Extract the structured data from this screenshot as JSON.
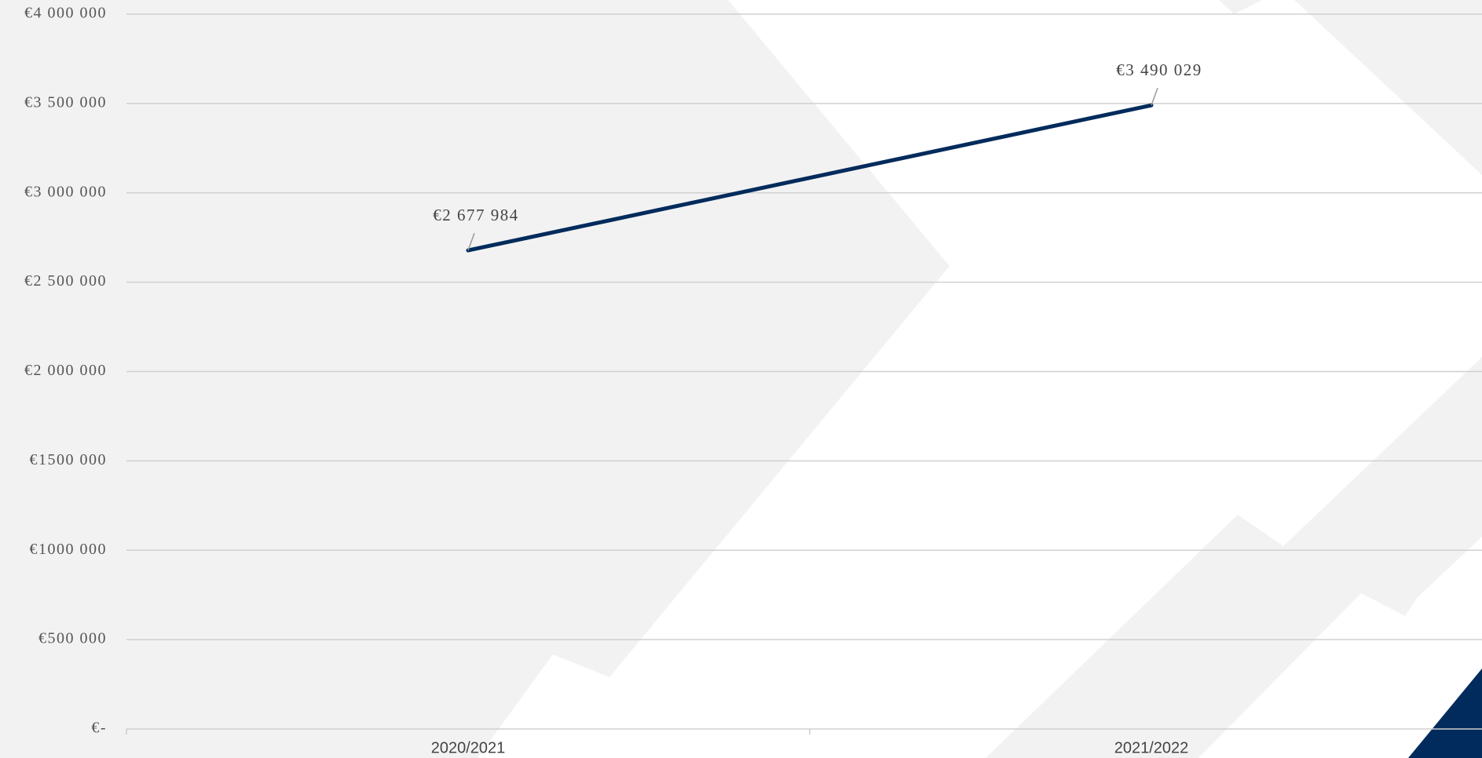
{
  "chart_data": {
    "type": "line",
    "categories": [
      "2020/2021",
      "2021/2022"
    ],
    "series": [
      {
        "color": "#002b5c",
        "values": [
          2677984,
          3490029
        ],
        "value_labels": [
          "€2 677 984",
          "€3 490 029"
        ]
      }
    ],
    "ylim": [
      0,
      4000000
    ],
    "yticks": [
      {
        "value": 0,
        "label": "€-"
      },
      {
        "value": 500000,
        "label": "€500 000"
      },
      {
        "value": 1000000,
        "label": "€1000 000"
      },
      {
        "value": 1500000,
        "label": "€1500 000"
      },
      {
        "value": 2000000,
        "label": "€2 000 000"
      },
      {
        "value": 2500000,
        "label": "€2 500 000"
      },
      {
        "value": 3000000,
        "label": "€3 000 000"
      },
      {
        "value": 3500000,
        "label": "€3 500 000"
      },
      {
        "value": 4000000,
        "label": "€4 000 000"
      }
    ],
    "grid": true
  }
}
